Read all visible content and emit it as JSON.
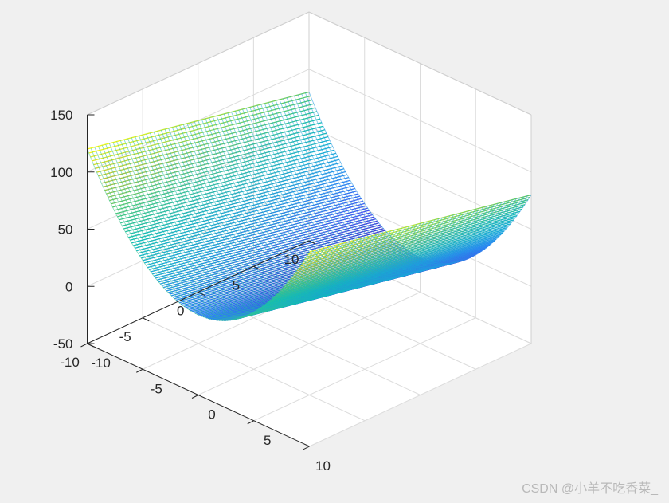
{
  "chart_data": {
    "type": "surface",
    "title": "",
    "xlabel": "",
    "ylabel": "",
    "zlabel": "",
    "function": "z = x^2 - 2y (paraboloid trough across x, sloped along y)",
    "x_range": [
      -10,
      10
    ],
    "y_range": [
      -10,
      10
    ],
    "zlim": [
      -50,
      150
    ],
    "grid": true,
    "colormap": "parula",
    "x_ticks": [
      "-10",
      "-5",
      "0",
      "5",
      "10"
    ],
    "y_ticks": [
      "-10",
      "-5",
      "0",
      "5",
      "10"
    ],
    "z_ticks": [
      "-50",
      "0",
      "50",
      "100",
      "150"
    ],
    "sample_points": [
      {
        "x": -10,
        "y": -10,
        "z": 120
      },
      {
        "x": 10,
        "y": 10,
        "z": 80
      },
      {
        "x": 0,
        "y": 10,
        "z": -20
      },
      {
        "x": 0,
        "y": -10,
        "z": 20
      },
      {
        "x": -10,
        "y": 10,
        "z": 80
      },
      {
        "x": 10,
        "y": -10,
        "z": 120
      }
    ]
  },
  "watermark": "CSDN @小羊不吃香菜_"
}
